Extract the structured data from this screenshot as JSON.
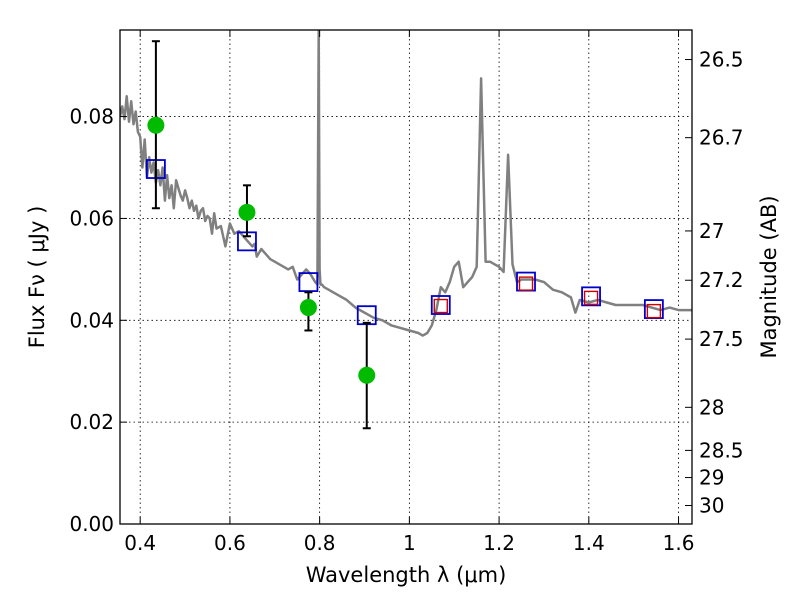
{
  "chart_data": {
    "type": "scatter",
    "xlabel": "Wavelength  λ (μm)",
    "ylabel": "Flux  Fν  ( μJy )",
    "y2label": "Magnitude (AB)",
    "xlim": [
      0.355,
      1.63
    ],
    "ylim": [
      0.0,
      0.097
    ],
    "x_ticks": [
      0.4,
      0.6,
      0.8,
      1.0,
      1.2,
      1.4,
      1.6
    ],
    "x_tick_labels": [
      "0.4",
      "0.6",
      "0.8",
      "1",
      "1.2",
      "1.4",
      "1.6"
    ],
    "y_ticks": [
      0.0,
      0.02,
      0.04,
      0.06,
      0.08
    ],
    "y_tick_labels": [
      "0.00",
      "0.02",
      "0.04",
      "0.06",
      "0.08"
    ],
    "mag_ticks": [
      26.5,
      26.7,
      27,
      27.2,
      27.5,
      28,
      28.5,
      29,
      30
    ],
    "mag_tick_labels": [
      "26.5",
      "26.7",
      "27",
      "27.2",
      "27.5",
      "28",
      "28.5",
      "29",
      "30"
    ],
    "grid": true,
    "model_spectrum": {
      "color": "#808080",
      "x": [
        0.355,
        0.36,
        0.365,
        0.37,
        0.375,
        0.38,
        0.385,
        0.39,
        0.395,
        0.4,
        0.405,
        0.41,
        0.415,
        0.42,
        0.425,
        0.43,
        0.435,
        0.44,
        0.445,
        0.45,
        0.455,
        0.46,
        0.465,
        0.47,
        0.475,
        0.48,
        0.485,
        0.49,
        0.495,
        0.5,
        0.505,
        0.51,
        0.515,
        0.52,
        0.525,
        0.53,
        0.535,
        0.54,
        0.545,
        0.55,
        0.555,
        0.56,
        0.565,
        0.57,
        0.58,
        0.59,
        0.6,
        0.61,
        0.62,
        0.63,
        0.64,
        0.65,
        0.655,
        0.66,
        0.67,
        0.68,
        0.69,
        0.7,
        0.71,
        0.72,
        0.73,
        0.74,
        0.75,
        0.76,
        0.77,
        0.78,
        0.79,
        0.795,
        0.798,
        0.8,
        0.802,
        0.805,
        0.81,
        0.82,
        0.84,
        0.86,
        0.88,
        0.9,
        0.92,
        0.94,
        0.96,
        0.98,
        1.0,
        1.02,
        1.03,
        1.04,
        1.05,
        1.06,
        1.07,
        1.08,
        1.09,
        1.1,
        1.11,
        1.12,
        1.13,
        1.14,
        1.15,
        1.16,
        1.17,
        1.18,
        1.19,
        1.2,
        1.21,
        1.22,
        1.23,
        1.24,
        1.25,
        1.26,
        1.28,
        1.3,
        1.32,
        1.34,
        1.36,
        1.37,
        1.38,
        1.4,
        1.42,
        1.44,
        1.46,
        1.48,
        1.5,
        1.52,
        1.54,
        1.56,
        1.58,
        1.6,
        1.63
      ],
      "y": [
        0.08,
        0.082,
        0.0795,
        0.084,
        0.079,
        0.083,
        0.0785,
        0.081,
        0.077,
        0.076,
        0.07,
        0.0755,
        0.068,
        0.072,
        0.069,
        0.071,
        0.067,
        0.0695,
        0.0665,
        0.07,
        0.0635,
        0.0685,
        0.064,
        0.0665,
        0.062,
        0.0675,
        0.066,
        0.0645,
        0.0635,
        0.0655,
        0.064,
        0.062,
        0.0635,
        0.0615,
        0.0625,
        0.06,
        0.0615,
        0.062,
        0.0595,
        0.0605,
        0.06,
        0.057,
        0.061,
        0.058,
        0.0585,
        0.0545,
        0.059,
        0.057,
        0.0575,
        0.0565,
        0.0555,
        0.0545,
        0.055,
        0.0525,
        0.054,
        0.053,
        0.052,
        0.0515,
        0.051,
        0.0505,
        0.05,
        0.0505,
        0.048,
        0.049,
        0.05,
        0.049,
        0.0475,
        0.047,
        0.097,
        0.05,
        0.047,
        0.047,
        0.0465,
        0.046,
        0.045,
        0.044,
        0.0425,
        0.0415,
        0.0405,
        0.04,
        0.039,
        0.0385,
        0.038,
        0.0375,
        0.037,
        0.0375,
        0.039,
        0.042,
        0.0465,
        0.0455,
        0.0475,
        0.0505,
        0.0515,
        0.0465,
        0.0475,
        0.0485,
        0.0505,
        0.0875,
        0.0515,
        0.0515,
        0.051,
        0.0505,
        0.0495,
        0.0725,
        0.051,
        0.0475,
        0.048,
        0.048,
        0.048,
        0.0475,
        0.046,
        0.0455,
        0.0445,
        0.0415,
        0.044,
        0.0435,
        0.044,
        0.0435,
        0.043,
        0.043,
        0.043,
        0.043,
        0.0425,
        0.042,
        0.0425,
        0.042,
        0.042
      ]
    },
    "observed": {
      "color": "#00bb00",
      "x": [
        0.435,
        0.638,
        0.775,
        0.905
      ],
      "y": [
        0.0783,
        0.0612,
        0.0425,
        0.0292
      ],
      "err_low": [
        0.062,
        0.0565,
        0.038,
        0.0188
      ],
      "err_high": [
        0.0948,
        0.0665,
        0.0455,
        0.0395
      ]
    },
    "model_photometry_blue": {
      "color": "#0000cc",
      "x": [
        0.435,
        0.638,
        0.775,
        0.905,
        1.07,
        1.26,
        1.405,
        1.545
      ],
      "y": [
        0.0697,
        0.0555,
        0.0475,
        0.041,
        0.043,
        0.0476,
        0.0447,
        0.0422
      ]
    },
    "model_photometry_red": {
      "color": "#cc0000",
      "x": [
        1.07,
        1.26,
        1.405,
        1.545
      ],
      "y": [
        0.0428,
        0.0472,
        0.0444,
        0.0418
      ]
    }
  }
}
